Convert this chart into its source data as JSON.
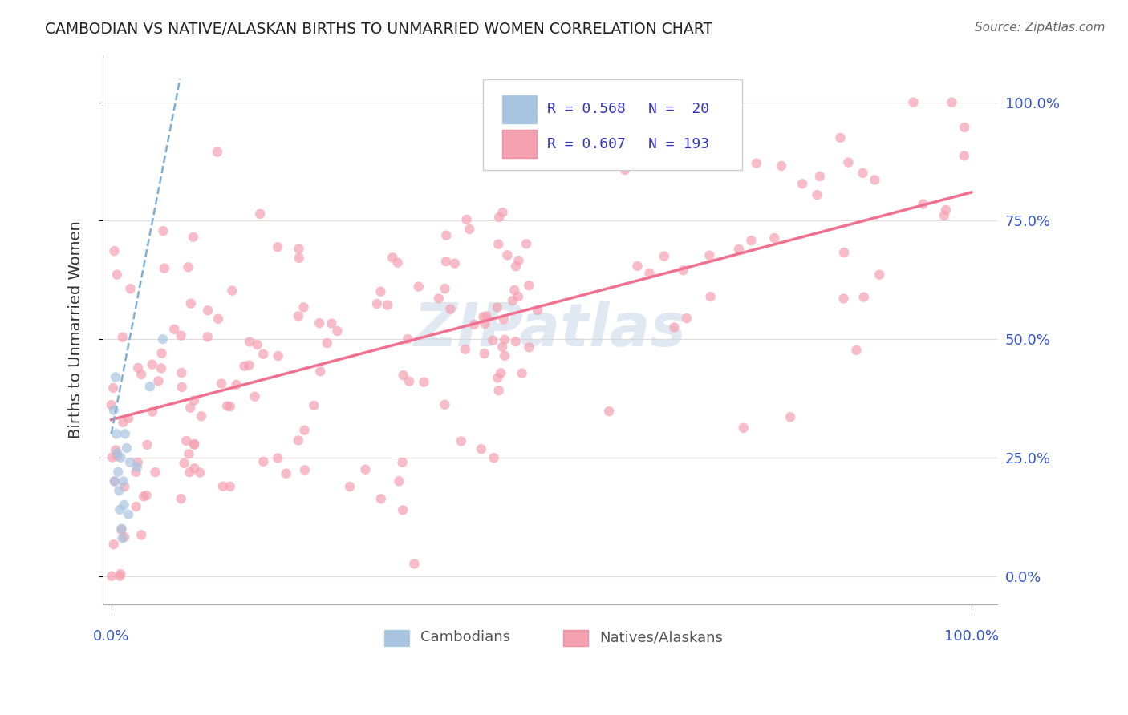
{
  "title": "CAMBODIAN VS NATIVE/ALASKAN BIRTHS TO UNMARRIED WOMEN CORRELATION CHART",
  "source": "Source: ZipAtlas.com",
  "ylabel": "Births to Unmarried Women",
  "ytick_vals": [
    0.0,
    0.25,
    0.5,
    0.75,
    1.0
  ],
  "ytick_labels": [
    "0.0%",
    "25.0%",
    "50.0%",
    "75.0%",
    "100.0%"
  ],
  "legend_cambodian_R": "0.568",
  "legend_cambodian_N": "20",
  "legend_native_R": "0.607",
  "legend_native_N": "193",
  "cambodian_color": "#a8c4e0",
  "native_color": "#f4a0b0",
  "trendline_cambodian_color": "#7ab0d8",
  "trendline_native_color": "#f07090",
  "legend_text_color": "#3333cc",
  "background_color": "#ffffff",
  "watermark_text": "ZIPatlas",
  "watermark_color": "#c8d8e8",
  "marker_size": 80,
  "marker_alpha": 0.7,
  "grid_color": "#e8d8d8",
  "axis_color": "#aaaaaa",
  "blue_label_color": "#3355cc"
}
